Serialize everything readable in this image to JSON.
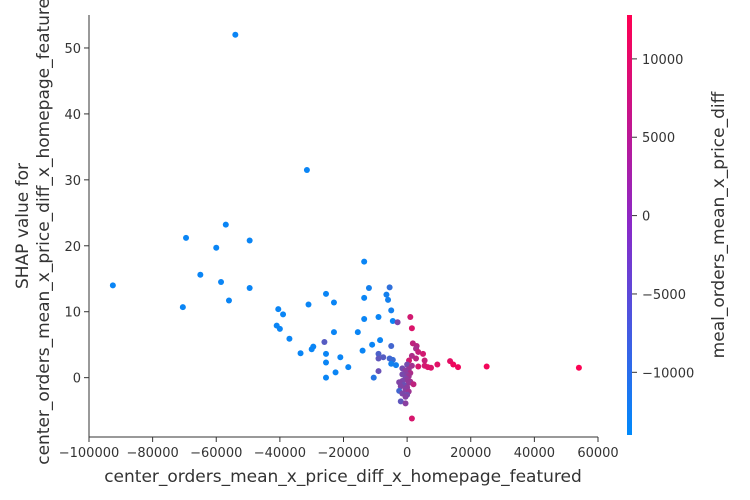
{
  "chart_data": {
    "type": "scatter",
    "xlabel": "center_orders_mean_x_price_diff_x_homepage_featured",
    "ylabel": "SHAP value for\ncenter_orders_mean_x_price_diff_x_homepage_featured",
    "xlim": [
      -100000,
      60000
    ],
    "ylim": [
      -9,
      55
    ],
    "xticks": [
      -100000,
      -80000,
      -60000,
      -40000,
      -20000,
      0,
      20000,
      40000,
      60000
    ],
    "yticks": [
      0,
      10,
      20,
      30,
      40,
      50
    ],
    "grid": false,
    "colorbar": {
      "label": "meal_orders_mean_x_price_diff",
      "min": -14000,
      "max": 12800,
      "ticks": [
        -10000,
        -5000,
        0,
        5000,
        10000
      ],
      "colors": [
        "#008afb",
        "#ff0052"
      ]
    },
    "points": [
      {
        "x": -54000,
        "y": 52.0,
        "c": -13000
      },
      {
        "x": -31500,
        "y": 31.5,
        "c": -13000
      },
      {
        "x": -57000,
        "y": 23.2,
        "c": -13000
      },
      {
        "x": -69500,
        "y": 21.2,
        "c": -13000
      },
      {
        "x": -49500,
        "y": 20.8,
        "c": -13000
      },
      {
        "x": -60000,
        "y": 19.7,
        "c": -13000
      },
      {
        "x": -13500,
        "y": 17.6,
        "c": -13000
      },
      {
        "x": -65000,
        "y": 15.6,
        "c": -13000
      },
      {
        "x": -58500,
        "y": 14.5,
        "c": -13000
      },
      {
        "x": -92500,
        "y": 14.0,
        "c": -13000
      },
      {
        "x": -49500,
        "y": 13.6,
        "c": -13000
      },
      {
        "x": -12000,
        "y": 13.6,
        "c": -12000
      },
      {
        "x": -5500,
        "y": 13.7,
        "c": -9000
      },
      {
        "x": -25500,
        "y": 12.7,
        "c": -13000
      },
      {
        "x": -6500,
        "y": 12.6,
        "c": -12000
      },
      {
        "x": -13500,
        "y": 12.1,
        "c": -13000
      },
      {
        "x": -6000,
        "y": 11.8,
        "c": -12000
      },
      {
        "x": -56000,
        "y": 11.7,
        "c": -13000
      },
      {
        "x": -23000,
        "y": 11.4,
        "c": -13000
      },
      {
        "x": -31000,
        "y": 11.1,
        "c": -13000
      },
      {
        "x": -70500,
        "y": 10.7,
        "c": -13000
      },
      {
        "x": -40500,
        "y": 10.4,
        "c": -13000
      },
      {
        "x": -5000,
        "y": 10.2,
        "c": -12000
      },
      {
        "x": -39000,
        "y": 9.6,
        "c": -13000
      },
      {
        "x": 1000,
        "y": 9.2,
        "c": 8000
      },
      {
        "x": -9000,
        "y": 9.2,
        "c": -13000
      },
      {
        "x": -13500,
        "y": 8.9,
        "c": -13000
      },
      {
        "x": -4500,
        "y": 8.6,
        "c": -13000
      },
      {
        "x": -3000,
        "y": 8.4,
        "c": -1000
      },
      {
        "x": -41000,
        "y": 7.9,
        "c": -13000
      },
      {
        "x": 1500,
        "y": 7.5,
        "c": 9000
      },
      {
        "x": -40000,
        "y": 7.4,
        "c": -13000
      },
      {
        "x": -23000,
        "y": 6.9,
        "c": -13000
      },
      {
        "x": -15500,
        "y": 6.9,
        "c": -13000
      },
      {
        "x": -37000,
        "y": 5.9,
        "c": -13000
      },
      {
        "x": -8500,
        "y": 5.7,
        "c": -13000
      },
      {
        "x": -26000,
        "y": 5.4,
        "c": -5000
      },
      {
        "x": 1800,
        "y": 5.2,
        "c": 6000
      },
      {
        "x": -11000,
        "y": 5.0,
        "c": -13000
      },
      {
        "x": -5000,
        "y": 4.8,
        "c": -7000
      },
      {
        "x": 3000,
        "y": 4.8,
        "c": 5000
      },
      {
        "x": -29500,
        "y": 4.7,
        "c": -13000
      },
      {
        "x": 2800,
        "y": 4.4,
        "c": 3500
      },
      {
        "x": -30000,
        "y": 4.3,
        "c": -13000
      },
      {
        "x": -14000,
        "y": 4.1,
        "c": -13000
      },
      {
        "x": 3500,
        "y": 3.9,
        "c": 6500
      },
      {
        "x": -33500,
        "y": 3.7,
        "c": -13000
      },
      {
        "x": -25500,
        "y": 3.6,
        "c": -13000
      },
      {
        "x": -9000,
        "y": 3.6,
        "c": -6000
      },
      {
        "x": 5000,
        "y": 3.6,
        "c": 8000
      },
      {
        "x": 1500,
        "y": 3.3,
        "c": 4000
      },
      {
        "x": -7500,
        "y": 3.1,
        "c": -5000
      },
      {
        "x": -21000,
        "y": 3.1,
        "c": -13000
      },
      {
        "x": -5500,
        "y": 2.9,
        "c": -7000
      },
      {
        "x": -9000,
        "y": 2.9,
        "c": -4000
      },
      {
        "x": 2800,
        "y": 2.9,
        "c": 5500
      },
      {
        "x": -4500,
        "y": 2.7,
        "c": -8000
      },
      {
        "x": 600,
        "y": 2.6,
        "c": 8000
      },
      {
        "x": 5500,
        "y": 2.6,
        "c": 7000
      },
      {
        "x": 13500,
        "y": 2.5,
        "c": 10000
      },
      {
        "x": -25500,
        "y": 2.3,
        "c": -13000
      },
      {
        "x": -5000,
        "y": 2.1,
        "c": -12000
      },
      {
        "x": 14500,
        "y": 2.0,
        "c": 11000
      },
      {
        "x": 9500,
        "y": 2.0,
        "c": 9500
      },
      {
        "x": 0,
        "y": 2.0,
        "c": -2000
      },
      {
        "x": -3500,
        "y": 1.9,
        "c": -12000
      },
      {
        "x": 1500,
        "y": 1.8,
        "c": 3000
      },
      {
        "x": 5500,
        "y": 1.8,
        "c": 8000
      },
      {
        "x": 3500,
        "y": 1.7,
        "c": 8500
      },
      {
        "x": 25000,
        "y": 1.7,
        "c": 11500
      },
      {
        "x": -18500,
        "y": 1.6,
        "c": -13000
      },
      {
        "x": 16000,
        "y": 1.6,
        "c": 11000
      },
      {
        "x": 6500,
        "y": 1.6,
        "c": 9000
      },
      {
        "x": 7500,
        "y": 1.5,
        "c": 9000
      },
      {
        "x": 54000,
        "y": 1.5,
        "c": 12500
      },
      {
        "x": -1500,
        "y": 1.4,
        "c": -2000
      },
      {
        "x": 500,
        "y": 1.3,
        "c": 2000
      },
      {
        "x": -500,
        "y": 1.1,
        "c": 500
      },
      {
        "x": -9000,
        "y": 1.0,
        "c": -3000
      },
      {
        "x": -22500,
        "y": 0.8,
        "c": -13000
      },
      {
        "x": 1000,
        "y": 0.7,
        "c": 4000
      },
      {
        "x": -1500,
        "y": 0.5,
        "c": -1500
      },
      {
        "x": 0,
        "y": 0.4,
        "c": 0
      },
      {
        "x": 500,
        "y": 0.2,
        "c": 2500
      },
      {
        "x": -10500,
        "y": 0.0,
        "c": -10000
      },
      {
        "x": -25500,
        "y": 0.0,
        "c": -13000
      },
      {
        "x": -500,
        "y": -0.1,
        "c": -1500
      },
      {
        "x": 0,
        "y": -0.3,
        "c": 1000
      },
      {
        "x": -1500,
        "y": -0.5,
        "c": -1000
      },
      {
        "x": 1000,
        "y": -0.6,
        "c": 3000
      },
      {
        "x": -2500,
        "y": -0.7,
        "c": -500
      },
      {
        "x": 500,
        "y": -0.8,
        "c": 1500
      },
      {
        "x": 2000,
        "y": -1.0,
        "c": 6000
      },
      {
        "x": -1000,
        "y": -1.1,
        "c": -2500
      },
      {
        "x": -2000,
        "y": -1.3,
        "c": -500
      },
      {
        "x": 0,
        "y": -1.5,
        "c": 1000
      },
      {
        "x": -500,
        "y": -1.8,
        "c": 500
      },
      {
        "x": -2500,
        "y": -2.0,
        "c": -7000
      },
      {
        "x": 500,
        "y": -2.1,
        "c": 2500
      },
      {
        "x": -1500,
        "y": -2.4,
        "c": -1000
      },
      {
        "x": 0,
        "y": -2.6,
        "c": -2000
      },
      {
        "x": -500,
        "y": -2.9,
        "c": 0
      },
      {
        "x": -2000,
        "y": -3.6,
        "c": -4000
      },
      {
        "x": -500,
        "y": -3.9,
        "c": 500
      },
      {
        "x": 1500,
        "y": -6.2,
        "c": 8500
      }
    ]
  }
}
